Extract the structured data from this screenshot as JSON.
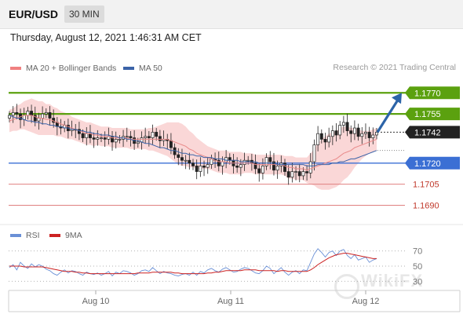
{
  "header": {
    "symbol": "EUR/USD",
    "timeframe": "30 MIN"
  },
  "datetime": "Thursday, August 12, 2021 1:46:31 AM CET",
  "legend": [
    {
      "label": "MA 20 + Bollinger Bands",
      "color": "#f08080"
    },
    {
      "label": "MA 50",
      "color": "#3b63a8"
    }
  ],
  "credit": "Research © 2021 Trading Central",
  "watermark": "WikiFX",
  "colors": {
    "green": "#5ba10f",
    "blue": "#3b6fd4",
    "red": "#e08080",
    "dark": "#222222",
    "bollinger": "#f8c9c9",
    "arrow": "#2c64a8"
  },
  "chart_data": [
    {
      "type": "candlestick",
      "ylim": [
        1.1678,
        1.1783
      ],
      "x_tick_labels": [
        "Aug 10",
        "Aug 11",
        "Aug 12"
      ],
      "price_levels": [
        {
          "value": 1.177,
          "label": "1.1770",
          "style": "green-line"
        },
        {
          "value": 1.1755,
          "label": "1.1755",
          "style": "green-line"
        },
        {
          "value": 1.1742,
          "label": "1.1742",
          "style": "current-price"
        },
        {
          "value": 1.172,
          "label": "1.1720",
          "style": "blue-line"
        },
        {
          "value": 1.1705,
          "label": "1.1705",
          "style": "red-line"
        },
        {
          "value": 1.169,
          "label": "1.1690",
          "style": "red-line"
        }
      ],
      "series": {
        "close": [
          1.1754,
          1.1756,
          1.1755,
          1.1751,
          1.1754,
          1.1757,
          1.1754,
          1.175,
          1.1752,
          1.1755,
          1.1756,
          1.1752,
          1.1749,
          1.1746,
          1.1745,
          1.1747,
          1.1743,
          1.1744,
          1.1744,
          1.1741,
          1.1738,
          1.1741,
          1.1738,
          1.1737,
          1.1738,
          1.1738,
          1.1737,
          1.1739,
          1.1735,
          1.1737,
          1.1737,
          1.1739,
          1.1739,
          1.1738,
          1.1734,
          1.1735,
          1.1738,
          1.1739,
          1.1738,
          1.1742,
          1.1739,
          1.1736,
          1.1737,
          1.1736,
          1.1731,
          1.1726,
          1.1724,
          1.1722,
          1.1722,
          1.172,
          1.1718,
          1.1714,
          1.1718,
          1.1717,
          1.1719,
          1.1723,
          1.1722,
          1.1718,
          1.1721,
          1.1724,
          1.1722,
          1.1718,
          1.1717,
          1.1719,
          1.1722,
          1.1722,
          1.172,
          1.1716,
          1.1713,
          1.1718,
          1.1724,
          1.1721,
          1.1715,
          1.1718,
          1.172,
          1.1714,
          1.171,
          1.1714,
          1.1714,
          1.1711,
          1.1714,
          1.1713,
          1.1721,
          1.1733,
          1.1741,
          1.1737,
          1.1735,
          1.1739,
          1.1743,
          1.174,
          1.1747,
          1.1749,
          1.1743,
          1.1741,
          1.1745,
          1.1739,
          1.1741,
          1.1742,
          1.1738,
          1.174,
          1.1742
        ],
        "ma20": [
          1.175,
          1.1751,
          1.1752,
          1.1753,
          1.1754,
          1.1754,
          1.1754,
          1.1753,
          1.1752,
          1.1752,
          1.1751,
          1.1751,
          1.175,
          1.1749,
          1.1748,
          1.1747,
          1.1746,
          1.1745,
          1.1744,
          1.1743,
          1.1742,
          1.1741,
          1.1741,
          1.174,
          1.174,
          1.1739,
          1.1739,
          1.1739,
          1.1738,
          1.1738,
          1.1738,
          1.1738,
          1.1738,
          1.1737,
          1.1737,
          1.1737,
          1.1737,
          1.1737,
          1.1737,
          1.1737,
          1.1737,
          1.1737,
          1.1737,
          1.1737,
          1.1736,
          1.1735,
          1.1734,
          1.1733,
          1.1732,
          1.173,
          1.1729,
          1.1727,
          1.1726,
          1.1725,
          1.1724,
          1.1723,
          1.1722,
          1.1721,
          1.1721,
          1.1721,
          1.172,
          1.172,
          1.172,
          1.172,
          1.172,
          1.172,
          1.172,
          1.1719,
          1.1719,
          1.1719,
          1.1719,
          1.1719,
          1.1719,
          1.1719,
          1.1719,
          1.1718,
          1.1717,
          1.1717,
          1.1716,
          1.1716,
          1.1716,
          1.1715,
          1.1716,
          1.1717,
          1.1718,
          1.1719,
          1.172,
          1.1721,
          1.1722,
          1.1723,
          1.1725,
          1.1727,
          1.1728,
          1.1729,
          1.1731,
          1.1732,
          1.1733,
          1.1734,
          1.1735,
          1.1736,
          1.1737
        ],
        "ma50": [
          1.1754,
          1.1753,
          1.1752,
          1.1752,
          1.1751,
          1.175,
          1.175,
          1.1749,
          1.1749,
          1.1748,
          1.1748,
          1.1747,
          1.1747,
          1.1746,
          1.1746,
          1.1745,
          1.1745,
          1.1744,
          1.1744,
          1.1743,
          1.1743,
          1.1742,
          1.1742,
          1.1741,
          1.1741,
          1.174,
          1.174,
          1.174,
          1.1739,
          1.1739,
          1.1738,
          1.1738,
          1.1737,
          1.1737,
          1.1736,
          1.1736,
          1.1735,
          1.1734,
          1.1734,
          1.1733,
          1.1732,
          1.1731,
          1.1731,
          1.173,
          1.1729,
          1.1729,
          1.1728,
          1.1727,
          1.1727,
          1.1726,
          1.1726,
          1.1725,
          1.1725,
          1.1724,
          1.1724,
          1.1724,
          1.1723,
          1.1723,
          1.1723,
          1.1722,
          1.1722,
          1.1722,
          1.1722,
          1.1721,
          1.1721,
          1.1721,
          1.1721,
          1.1721,
          1.172,
          1.172,
          1.172,
          1.172,
          1.172,
          1.1719,
          1.1719,
          1.1719,
          1.1719,
          1.1719,
          1.1719,
          1.1719,
          1.1719,
          1.1718,
          1.1718,
          1.1718,
          1.1719,
          1.1719,
          1.1719,
          1.1719,
          1.172,
          1.172,
          1.1721,
          1.1721,
          1.1722,
          1.1723,
          1.1723,
          1.1724,
          1.1725,
          1.1726,
          1.1727,
          1.1728,
          1.1729
        ],
        "bb_width": [
          0.0008,
          0.0008,
          0.0009,
          0.0009,
          0.001,
          0.0011,
          0.0012,
          0.0012,
          0.0012,
          0.0012,
          0.0011,
          0.0011,
          0.001,
          0.001,
          0.0009,
          0.0009,
          0.0009,
          0.0008,
          0.0008,
          0.0008,
          0.0008,
          0.0008,
          0.0008,
          0.0008,
          0.0007,
          0.0007,
          0.0007,
          0.0007,
          0.0007,
          0.0007,
          0.0007,
          0.0007,
          0.0007,
          0.0007,
          0.0007,
          0.0007,
          0.0007,
          0.0007,
          0.0008,
          0.0008,
          0.0009,
          0.001,
          0.0011,
          0.0012,
          0.0013,
          0.0014,
          0.0015,
          0.0015,
          0.0014,
          0.0013,
          0.0012,
          0.0011,
          0.001,
          0.0009,
          0.0008,
          0.0008,
          0.0008,
          0.0008,
          0.0008,
          0.0008,
          0.0008,
          0.0008,
          0.0008,
          0.0008,
          0.0007,
          0.0007,
          0.0007,
          0.0007,
          0.0007,
          0.0007,
          0.0007,
          0.0007,
          0.0007,
          0.0007,
          0.0007,
          0.0007,
          0.0008,
          0.0008,
          0.0008,
          0.0008,
          0.0008,
          0.0009,
          0.0011,
          0.0013,
          0.0016,
          0.0018,
          0.0019,
          0.002,
          0.002,
          0.002,
          0.002,
          0.0019,
          0.0018,
          0.0016,
          0.0014,
          0.0012,
          0.001,
          0.0009,
          0.0008,
          0.0008,
          0.0008
        ]
      },
      "forecast_arrow": {
        "from": 1.1742,
        "to": 1.177
      }
    },
    {
      "type": "line",
      "legend": [
        {
          "label": "RSI",
          "color": "#6a90d6"
        },
        {
          "label": "9MA",
          "color": "#cc2222"
        }
      ],
      "y_tick_labels": [
        "70",
        "50",
        "30"
      ],
      "ylim": [
        22,
        78
      ],
      "rsi": [
        48,
        52,
        45,
        55,
        50,
        47,
        53,
        49,
        52,
        50,
        46,
        44,
        40,
        38,
        42,
        45,
        41,
        44,
        43,
        40,
        38,
        42,
        40,
        39,
        41,
        38,
        40,
        43,
        37,
        42,
        40,
        44,
        43,
        41,
        38,
        40,
        44,
        45,
        43,
        48,
        44,
        40,
        43,
        41,
        40,
        38,
        37,
        39,
        40,
        38,
        42,
        38,
        43,
        41,
        45,
        47,
        44,
        42,
        46,
        48,
        45,
        42,
        43,
        46,
        48,
        47,
        44,
        41,
        40,
        44,
        50,
        47,
        40,
        44,
        48,
        42,
        38,
        42,
        44,
        40,
        45,
        44,
        55,
        66,
        73,
        68,
        62,
        68,
        70,
        64,
        70,
        72,
        64,
        60,
        65,
        58,
        60,
        62,
        55,
        58,
        60
      ],
      "ma9": [
        50,
        50,
        50,
        50,
        49,
        49,
        49,
        49,
        49,
        49,
        48,
        47,
        46,
        45,
        44,
        43,
        43,
        43,
        42,
        42,
        41,
        41,
        40,
        40,
        40,
        40,
        40,
        40,
        40,
        40,
        40,
        40,
        40,
        40,
        40,
        41,
        41,
        41,
        41,
        42,
        42,
        42,
        42,
        42,
        42,
        41,
        41,
        40,
        40,
        40,
        40,
        40,
        40,
        40,
        41,
        41,
        42,
        42,
        43,
        44,
        44,
        44,
        44,
        44,
        45,
        45,
        45,
        45,
        44,
        44,
        44,
        44,
        44,
        43,
        44,
        44,
        43,
        43,
        43,
        43,
        43,
        43,
        45,
        48,
        52,
        55,
        58,
        61,
        63,
        65,
        66,
        67,
        67,
        66,
        65,
        64,
        63,
        62,
        61,
        60,
        60
      ]
    }
  ]
}
